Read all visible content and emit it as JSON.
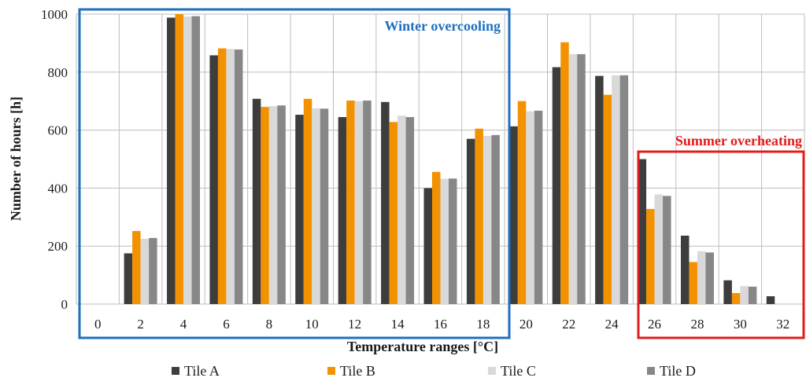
{
  "chart_data": {
    "type": "bar",
    "title": "",
    "xlabel": "Temperature ranges  [°C]",
    "ylabel": "Number of hours [h]",
    "ylim": [
      0,
      1000
    ],
    "yticks": [
      0,
      200,
      400,
      600,
      800,
      1000
    ],
    "grid": true,
    "legend_placement": "bottom",
    "categories": [
      "0",
      "2",
      "4",
      "6",
      "8",
      "10",
      "12",
      "14",
      "16",
      "18",
      "20",
      "22",
      "24",
      "26",
      "28",
      "30",
      "32"
    ],
    "series": [
      {
        "name": "Tile A",
        "color": "#3d3d3d",
        "values": [
          0,
          175,
          988,
          858,
          708,
          653,
          645,
          697,
          400,
          570,
          613,
          817,
          787,
          500,
          236,
          82,
          27
        ]
      },
      {
        "name": "Tile B",
        "color": "#f39200",
        "values": [
          0,
          252,
          1000,
          882,
          680,
          708,
          702,
          628,
          456,
          605,
          700,
          903,
          722,
          328,
          145,
          38,
          0
        ]
      },
      {
        "name": "Tile C",
        "color": "#d9d9d9",
        "values": [
          0,
          225,
          992,
          880,
          683,
          675,
          700,
          650,
          432,
          580,
          665,
          862,
          789,
          378,
          182,
          62,
          0
        ]
      },
      {
        "name": "Tile D",
        "color": "#878787",
        "values": [
          0,
          228,
          993,
          878,
          685,
          674,
          702,
          645,
          433,
          583,
          667,
          862,
          789,
          373,
          178,
          60,
          0
        ]
      }
    ],
    "annotations": [
      {
        "text": "Winter overcooling",
        "color": "#1f6fbf",
        "range": [
          "0",
          "18"
        ],
        "position": "top-right"
      },
      {
        "text": "Summer overheating",
        "color": "#e31b1b",
        "range": [
          "26",
          "32"
        ],
        "position": "top-right"
      }
    ]
  }
}
